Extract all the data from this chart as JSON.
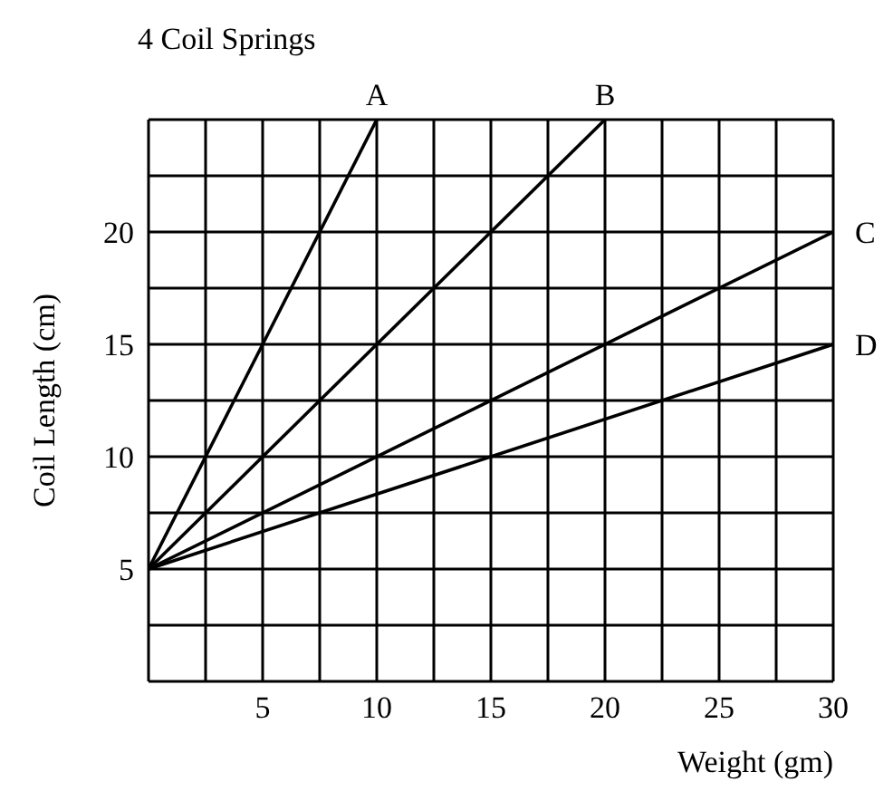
{
  "chart_data": {
    "type": "line",
    "title": "4 Coil Springs",
    "xlabel": "Weight (gm)",
    "ylabel": "Coil Length (cm)",
    "series": [
      {
        "name": "A",
        "color": "#000000",
        "x": [
          0,
          10
        ],
        "values": [
          5,
          25
        ]
      },
      {
        "name": "B",
        "color": "#000000",
        "x": [
          0,
          20
        ],
        "values": [
          5,
          25
        ]
      },
      {
        "name": "C",
        "color": "#000000",
        "x": [
          0,
          30
        ],
        "values": [
          5,
          20
        ]
      },
      {
        "name": "D",
        "color": "#000000",
        "x": [
          0,
          30
        ],
        "values": [
          5,
          15
        ]
      }
    ],
    "xlim": [
      0,
      30
    ],
    "ylim": [
      0,
      25
    ],
    "xticks": [
      {
        "value": 0,
        "label": null
      },
      {
        "value": 2.5,
        "label": null
      },
      5,
      {
        "value": 7.5,
        "label": null
      },
      10,
      {
        "value": 12.5,
        "label": null
      },
      15,
      {
        "value": 17.5,
        "label": null
      },
      20,
      {
        "value": 22.5,
        "label": null
      },
      25,
      {
        "value": 27.5,
        "label": null
      },
      30
    ],
    "yticks": [
      {
        "value": 0,
        "label": null
      },
      {
        "value": 2.5,
        "label": null
      },
      5,
      {
        "value": 7.5,
        "label": null
      },
      10,
      {
        "value": 12.5,
        "label": null
      },
      15,
      {
        "value": 17.5,
        "label": null
      },
      20,
      {
        "value": 22.5,
        "label": null
      },
      {
        "value": 25,
        "label": null
      }
    ],
    "grid": true,
    "legend": false,
    "marker": "none",
    "line_style": "solid"
  }
}
